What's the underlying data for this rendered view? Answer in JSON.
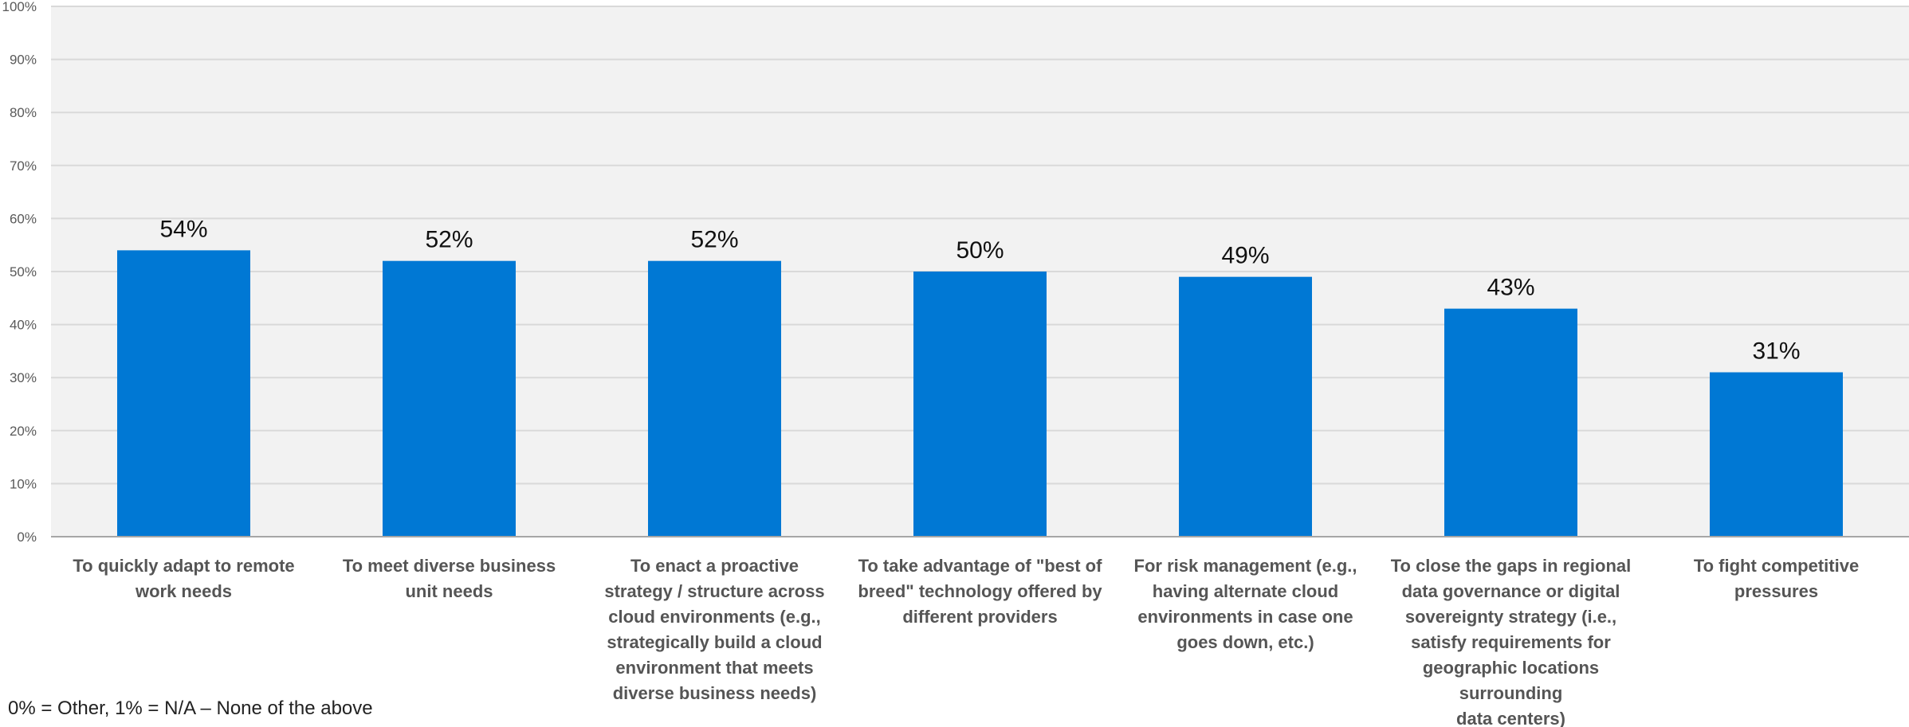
{
  "chart_data": {
    "type": "bar",
    "title": "",
    "xlabel": "",
    "ylabel": "",
    "ylim": [
      0,
      100
    ],
    "y_ticks": [
      0,
      10,
      20,
      30,
      40,
      50,
      60,
      70,
      80,
      90,
      100
    ],
    "y_tick_labels": [
      "0%",
      "10%",
      "20%",
      "30%",
      "40%",
      "50%",
      "60%",
      "70%",
      "80%",
      "90%",
      "100%"
    ],
    "grid": true,
    "categories": [
      "To quickly adapt to remote work needs",
      "To meet diverse business unit needs",
      "To enact a proactive strategy / structure across cloud environments (e.g., strategically build a cloud environment that meets diverse business needs)",
      "To take advantage of \"best of breed\" technology offered by different providers",
      "For risk management (e.g., having alternate cloud environments in case one goes down, etc.)",
      "To close the gaps in regional data governance or digital sovereignty strategy (i.e., satisfy requirements for geographic locations surrounding data centers)",
      "To fight competitive pressures"
    ],
    "category_lines": [
      [
        "To quickly adapt to remote",
        "work needs"
      ],
      [
        "To meet diverse business",
        "unit needs"
      ],
      [
        "To enact a proactive",
        "strategy / structure across",
        "cloud environments (e.g.,",
        "strategically build a cloud",
        "environment that meets",
        "diverse business needs)"
      ],
      [
        "To take advantage of \"best of",
        "breed\" technology offered by",
        "different providers"
      ],
      [
        "For risk management (e.g.,",
        "having alternate cloud",
        "environments in case one",
        "goes down, etc.)"
      ],
      [
        "To close the gaps in regional",
        "data governance or digital",
        "sovereignty strategy (i.e.,",
        "satisfy requirements for",
        "geographic locations",
        "surrounding",
        "data centers)"
      ],
      [
        "To fight competitive",
        "pressures"
      ]
    ],
    "values": [
      54,
      52,
      52,
      50,
      49,
      43,
      31
    ],
    "data_labels": [
      "54%",
      "52%",
      "52%",
      "50%",
      "49%",
      "43%",
      "31%"
    ],
    "bar_color": "#0078d4",
    "plot_background": "#f2f2f2",
    "grid_color": "#d9d9d9"
  },
  "footnote": "0% = Other, 1% = N/A – None of the above"
}
